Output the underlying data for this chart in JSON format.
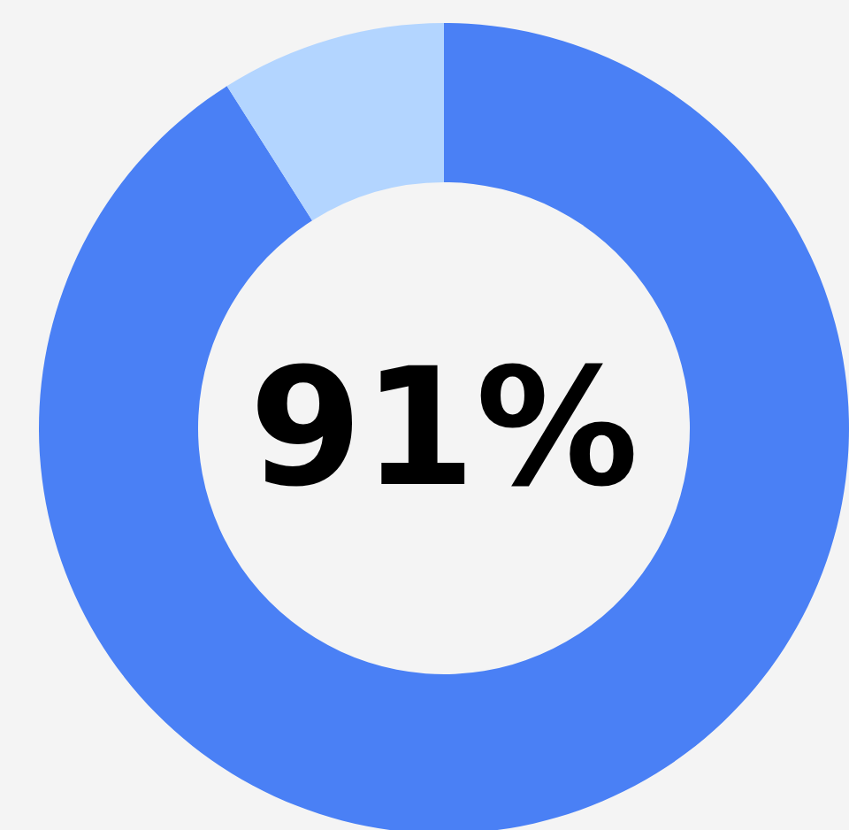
{
  "chart_data": {
    "type": "donut",
    "categories": [
      null,
      null
    ],
    "values": [
      91,
      9
    ],
    "colors": [
      "#4a80f5",
      "#b3d5ff"
    ],
    "value_labels": [
      "91%",
      null
    ]
  }
}
